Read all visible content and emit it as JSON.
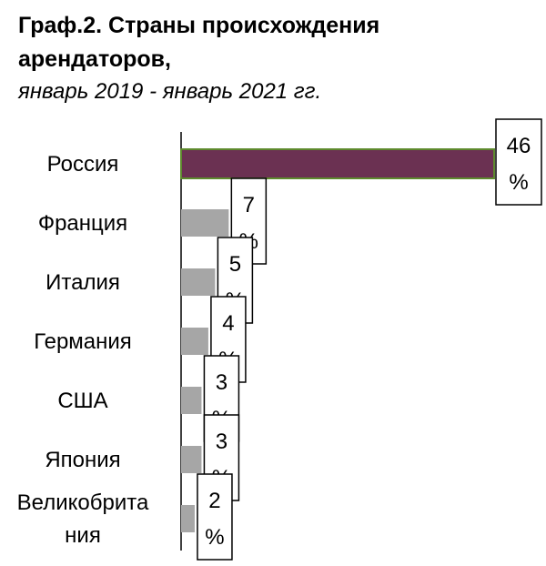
{
  "title": "Граф.2. Страны происхождения арендаторов,",
  "subtitle": "январь 2019 - январь 2021 гг.",
  "colors": {
    "highlight": "#6b3152",
    "highlight_border": "#5e8a2e",
    "bar": "#a6a6a6",
    "axis": "#000000"
  },
  "chart_data": {
    "type": "bar",
    "orientation": "horizontal",
    "title": "Граф.2. Страны происхождения арендаторов,",
    "subtitle": "январь 2019 - январь 2021 гг.",
    "categories": [
      [
        "Россия"
      ],
      [
        "Франция"
      ],
      [
        "Италия"
      ],
      [
        "Германия"
      ],
      [
        "США"
      ],
      [
        "Япония"
      ],
      [
        "Великобрита",
        "ния"
      ]
    ],
    "values": [
      46,
      7,
      5,
      4,
      3,
      3,
      2
    ],
    "value_labels": [
      [
        "46",
        "%"
      ],
      [
        "7",
        "%"
      ],
      [
        "5",
        "%"
      ],
      [
        "4",
        "%"
      ],
      [
        "3",
        "%"
      ],
      [
        "3",
        "%"
      ],
      [
        "2",
        "%"
      ]
    ],
    "unit": "%",
    "xlim": [
      0,
      46
    ],
    "grid": false,
    "legend": "none"
  }
}
